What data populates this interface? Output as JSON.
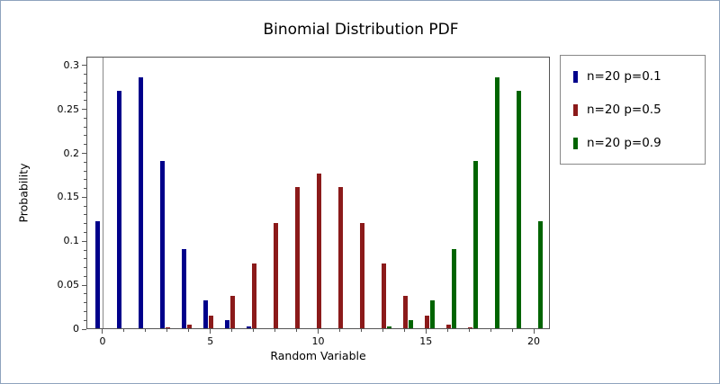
{
  "chart_data": {
    "type": "bar",
    "title": "Binomial Distribution PDF",
    "xlabel": "Random Variable",
    "ylabel": "Probability",
    "x": [
      0,
      1,
      2,
      3,
      4,
      5,
      6,
      7,
      8,
      9,
      10,
      11,
      12,
      13,
      14,
      15,
      16,
      17,
      18,
      19,
      20
    ],
    "series": [
      {
        "name": "n=20 p=0.1",
        "color": "#00008b",
        "values": [
          0.1216,
          0.2702,
          0.2852,
          0.1901,
          0.0898,
          0.0319,
          0.0089,
          0.002,
          0.0004,
          0.0001,
          0,
          0,
          0,
          0,
          0,
          0,
          0,
          0,
          0,
          0,
          0
        ]
      },
      {
        "name": "n=20 p=0.5",
        "color": "#8b1a1a",
        "values": [
          0,
          0,
          0.0002,
          0.0011,
          0.0046,
          0.0148,
          0.037,
          0.0739,
          0.1201,
          0.1602,
          0.1762,
          0.1602,
          0.1201,
          0.0739,
          0.037,
          0.0148,
          0.0046,
          0.0011,
          0.0002,
          0,
          0
        ]
      },
      {
        "name": "n=20 p=0.9",
        "color": "#006400",
        "values": [
          0,
          0,
          0,
          0,
          0,
          0,
          0,
          0,
          0,
          0,
          0,
          0.0001,
          0.0004,
          0.002,
          0.0089,
          0.0319,
          0.0898,
          0.1901,
          0.2852,
          0.2702,
          0.1216
        ]
      }
    ],
    "xticks": [
      0,
      5,
      10,
      15,
      20
    ],
    "xtick_labels": [
      "0",
      "5",
      "10",
      "15",
      "20"
    ],
    "yticks": [
      0,
      0.05,
      0.1,
      0.15,
      0.2,
      0.25,
      0.3
    ],
    "ytick_labels": [
      "0",
      "0.05",
      "0.1",
      "0.15",
      "0.2",
      "0.25",
      "0.3"
    ],
    "xlim": [
      -0.75,
      20.75
    ],
    "ylim": [
      0,
      0.31
    ],
    "bar_offsets": [
      -0.25,
      0,
      0.25
    ],
    "bar_width_units": 0.2,
    "zero_line_x": 0,
    "grid": false,
    "legend_position": "right"
  }
}
